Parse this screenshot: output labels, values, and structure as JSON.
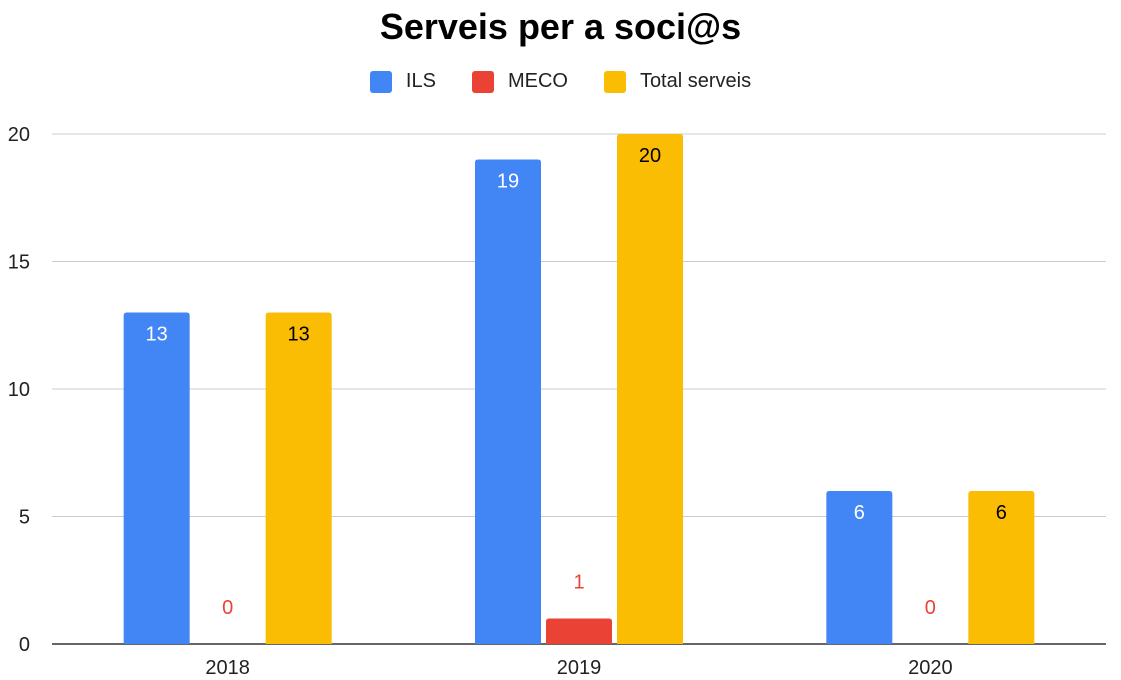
{
  "chart_data": {
    "type": "bar",
    "title": "Serveis per a soci@s",
    "categories": [
      "2018",
      "2019",
      "2020"
    ],
    "series": [
      {
        "name": "ILS",
        "values": [
          13,
          19,
          6
        ],
        "color": "#4285F4",
        "label_color": "#ffffff"
      },
      {
        "name": "MECO",
        "values": [
          0,
          1,
          0
        ],
        "color": "#EA4335",
        "label_color": "#EA4335"
      },
      {
        "name": "Total serveis",
        "values": [
          13,
          20,
          6
        ],
        "color": "#FBBC04",
        "label_color": "#000000"
      }
    ],
    "ylim": [
      0,
      20
    ],
    "yticks": [
      0,
      5,
      10,
      15,
      20
    ],
    "grid": true,
    "legend_position": "top"
  }
}
